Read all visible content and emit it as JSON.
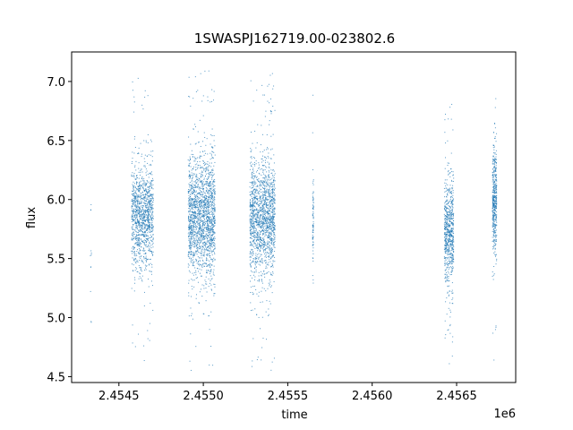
{
  "chart_data": {
    "type": "scatter",
    "title": "1SWASPJ162719.00-023802.6",
    "xlabel": "time",
    "ylabel": "flux",
    "x_offset_label": "1e6",
    "xlim": [
      2454220,
      2456850
    ],
    "ylim": [
      4.45,
      7.25
    ],
    "x_ticks": [
      2454500,
      2455000,
      2455500,
      2456000,
      2456500
    ],
    "x_tick_labels": [
      "2.4545",
      "2.4550",
      "2.4555",
      "2.4560",
      "2.4565"
    ],
    "y_ticks": [
      4.5,
      5.0,
      5.5,
      6.0,
      6.5,
      7.0
    ],
    "y_tick_labels": [
      "4.5",
      "5.0",
      "5.5",
      "6.0",
      "6.5",
      "7.0"
    ],
    "grid": false,
    "point_color": "#1f77b4",
    "clusters": [
      {
        "x_center": 2454335,
        "x_width": 8,
        "y_center": 5.45,
        "y_spread": 0.35,
        "y_min": 4.95,
        "y_max": 5.98,
        "count": 12
      },
      {
        "x_center": 2454640,
        "x_width": 130,
        "y_center": 5.85,
        "y_spread": 0.22,
        "y_min": 4.6,
        "y_max": 7.1,
        "count": 1200
      },
      {
        "x_center": 2454990,
        "x_width": 160,
        "y_center": 5.85,
        "y_spread": 0.26,
        "y_min": 4.55,
        "y_max": 7.12,
        "count": 1800
      },
      {
        "x_center": 2455350,
        "x_width": 150,
        "y_center": 5.85,
        "y_spread": 0.24,
        "y_min": 4.55,
        "y_max": 7.1,
        "count": 1600
      },
      {
        "x_center": 2455650,
        "x_width": 6,
        "y_center": 5.8,
        "y_spread": 0.18,
        "y_min": 5.22,
        "y_max": 6.9,
        "count": 80
      },
      {
        "x_center": 2456455,
        "x_width": 55,
        "y_center": 5.75,
        "y_spread": 0.22,
        "y_min": 4.6,
        "y_max": 6.85,
        "count": 700
      },
      {
        "x_center": 2456725,
        "x_width": 25,
        "y_center": 6.0,
        "y_spread": 0.22,
        "y_min": 4.55,
        "y_max": 7.1,
        "count": 450
      }
    ]
  }
}
